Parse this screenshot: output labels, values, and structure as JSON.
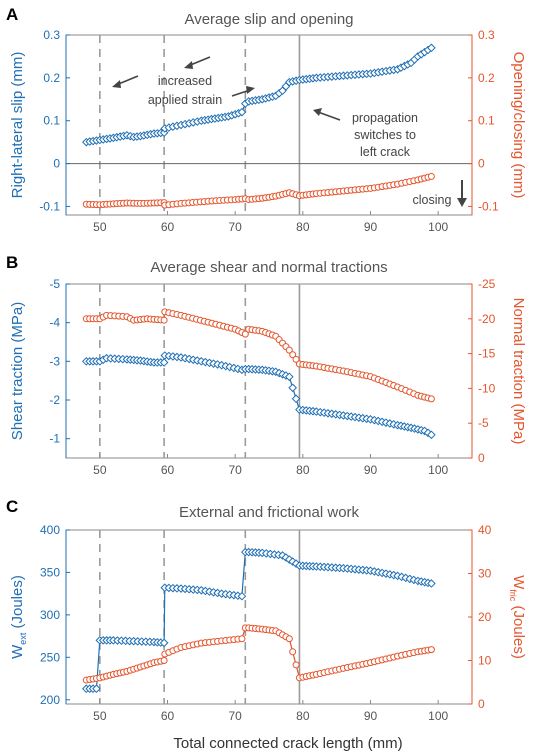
{
  "colors": {
    "blue": "#1f6fb5",
    "orange": "#e4562d",
    "axis": "#555555"
  },
  "xlabel": "Total connected crack length (mm)",
  "chart_data": [
    {
      "label": "A",
      "type": "line",
      "title": "Average slip and opening",
      "xlim": [
        45,
        105
      ],
      "xticks": [
        50,
        60,
        70,
        80,
        90,
        100
      ],
      "vlines_dashed": [
        50,
        59.5,
        71.5
      ],
      "vline_solid": 79.5,
      "left_axis": {
        "label": "Right-lateral slip (mm)",
        "ylim": [
          -0.12,
          0.3
        ],
        "ticks": [
          -0.1,
          0,
          0.1,
          0.2,
          0.3
        ],
        "tick_labels": [
          "-0.1",
          "0",
          "0.1",
          "0.2",
          "0.3"
        ]
      },
      "right_axis": {
        "label": "Opening/closing (mm)",
        "ylim": [
          -0.12,
          0.3
        ],
        "ticks": [
          -0.1,
          0,
          0.1,
          0.2,
          0.3
        ],
        "tick_labels": [
          "-0.1",
          "0",
          "0.1",
          "0.2",
          "0.3"
        ]
      },
      "zero_line": 0,
      "series": [
        {
          "axis": "left",
          "marker": "diamond",
          "points": [
            [
              48,
              0.05
            ],
            [
              50,
              0.055
            ],
            [
              52,
              0.06
            ],
            [
              54,
              0.066
            ],
            [
              55,
              0.062
            ],
            [
              56,
              0.064
            ],
            [
              58,
              0.07
            ],
            [
              59.5,
              0.072
            ],
            [
              59.6,
              0.082
            ],
            [
              62,
              0.09
            ],
            [
              65,
              0.1
            ],
            [
              67,
              0.105
            ],
            [
              69,
              0.11
            ],
            [
              71,
              0.12
            ],
            [
              71.5,
              0.14
            ],
            [
              72,
              0.145
            ],
            [
              74,
              0.15
            ],
            [
              76,
              0.158
            ],
            [
              77,
              0.17
            ],
            [
              78,
              0.19
            ],
            [
              79.5,
              0.195
            ],
            [
              82,
              0.2
            ],
            [
              86,
              0.205
            ],
            [
              90,
              0.21
            ],
            [
              94,
              0.22
            ],
            [
              96,
              0.235
            ],
            [
              97,
              0.25
            ],
            [
              99,
              0.27
            ]
          ]
        },
        {
          "axis": "right",
          "marker": "circle",
          "points": [
            [
              48,
              -0.095
            ],
            [
              50,
              -0.096
            ],
            [
              52,
              -0.094
            ],
            [
              54,
              -0.092
            ],
            [
              56,
              -0.093
            ],
            [
              58,
              -0.092
            ],
            [
              59.5,
              -0.091
            ],
            [
              59.6,
              -0.097
            ],
            [
              62,
              -0.093
            ],
            [
              66,
              -0.088
            ],
            [
              70,
              -0.084
            ],
            [
              71.5,
              -0.082
            ],
            [
              72,
              -0.084
            ],
            [
              74,
              -0.081
            ],
            [
              76,
              -0.076
            ],
            [
              78,
              -0.068
            ],
            [
              79.5,
              -0.075
            ],
            [
              82,
              -0.07
            ],
            [
              86,
              -0.064
            ],
            [
              90,
              -0.058
            ],
            [
              94,
              -0.048
            ],
            [
              97,
              -0.038
            ],
            [
              99,
              -0.03
            ]
          ]
        }
      ],
      "annotations": [
        {
          "text": "increased applied strain",
          "lines": [
            "increased",
            "applied strain"
          ]
        },
        {
          "text": "propagation switches to left crack",
          "lines": [
            "propagation",
            "switches to",
            "left crack"
          ]
        },
        {
          "text": "closing",
          "lines": [
            "closing"
          ]
        }
      ]
    },
    {
      "label": "B",
      "type": "line",
      "title": "Average shear and normal tractions",
      "xlim": [
        45,
        105
      ],
      "xticks": [
        50,
        60,
        70,
        80,
        90,
        100
      ],
      "vlines_dashed": [
        50,
        59.5,
        71.5
      ],
      "vline_solid": 79.5,
      "left_axis": {
        "label": "Shear traction (MPa)",
        "ylim": [
          -0.5,
          -5
        ],
        "ticks": [
          -1,
          -2,
          -3,
          -4,
          -5
        ],
        "tick_labels": [
          "-1",
          "-2",
          "-3",
          "-4",
          "-5"
        ]
      },
      "right_axis": {
        "label": "Normal traction (MPa)",
        "ylim": [
          0,
          -25
        ],
        "ticks": [
          0,
          -5,
          -10,
          -15,
          -20,
          -25
        ],
        "tick_labels": [
          "0",
          "-5",
          "-10",
          "-15",
          "-20",
          "-25"
        ]
      },
      "series": [
        {
          "axis": "left",
          "marker": "diamond",
          "points": [
            [
              48,
              -3.0
            ],
            [
              50,
              -3.0
            ],
            [
              51,
              -3.08
            ],
            [
              54,
              -3.05
            ],
            [
              56,
              -3.02
            ],
            [
              58,
              -2.97
            ],
            [
              59.5,
              -2.97
            ],
            [
              59.6,
              -3.15
            ],
            [
              62,
              -3.1
            ],
            [
              65,
              -3.0
            ],
            [
              68,
              -2.9
            ],
            [
              71,
              -2.78
            ],
            [
              71.5,
              -2.8
            ],
            [
              72,
              -2.8
            ],
            [
              74,
              -2.78
            ],
            [
              76,
              -2.73
            ],
            [
              78,
              -2.6
            ],
            [
              79.5,
              -1.75
            ],
            [
              82,
              -1.7
            ],
            [
              86,
              -1.6
            ],
            [
              90,
              -1.5
            ],
            [
              94,
              -1.35
            ],
            [
              96,
              -1.28
            ],
            [
              98,
              -1.2
            ],
            [
              99,
              -1.1
            ]
          ]
        },
        {
          "axis": "right",
          "marker": "circle",
          "points": [
            [
              48,
              -20
            ],
            [
              50,
              -20
            ],
            [
              51,
              -20.5
            ],
            [
              54,
              -20.3
            ],
            [
              55,
              -19.8
            ],
            [
              57,
              -20
            ],
            [
              59.5,
              -19.8
            ],
            [
              59.6,
              -21
            ],
            [
              62,
              -20.5
            ],
            [
              66,
              -19.5
            ],
            [
              70,
              -18.5
            ],
            [
              71.5,
              -17.8
            ],
            [
              72,
              -18.5
            ],
            [
              74,
              -18.2
            ],
            [
              76,
              -17.5
            ],
            [
              78,
              -15.5
            ],
            [
              79.5,
              -13.5
            ],
            [
              82,
              -13.2
            ],
            [
              86,
              -12.5
            ],
            [
              90,
              -11.7
            ],
            [
              94,
              -10.2
            ],
            [
              97,
              -9
            ],
            [
              99,
              -8.5
            ]
          ]
        }
      ]
    },
    {
      "label": "C",
      "type": "line",
      "title": "External and frictional work",
      "xlim": [
        45,
        105
      ],
      "xticks": [
        50,
        60,
        70,
        80,
        90,
        100
      ],
      "vlines_dashed": [
        50,
        59.5,
        71.5
      ],
      "vline_solid": 79.5,
      "left_axis": {
        "label": "W_ext (Joules)",
        "label_main": "W",
        "label_sub": "ext",
        "label_rest": " (Joules)",
        "ylim": [
          195,
          400
        ],
        "ticks": [
          200,
          250,
          300,
          350,
          400
        ],
        "tick_labels": [
          "200",
          "250",
          "300",
          "350",
          "400"
        ]
      },
      "right_axis": {
        "label": "W_fric (Joules)",
        "label_main": "W",
        "label_sub": "fric",
        "label_rest": " (Joules)",
        "ylim": [
          0,
          40
        ],
        "ticks": [
          0,
          10,
          20,
          30,
          40
        ],
        "tick_labels": [
          "0",
          "10",
          "20",
          "30",
          "40"
        ]
      },
      "series": [
        {
          "axis": "left",
          "marker": "diamond",
          "points": [
            [
              48,
              213
            ],
            [
              49.5,
              213
            ],
            [
              50,
              270
            ],
            [
              52,
              270
            ],
            [
              55,
              269
            ],
            [
              58,
              268
            ],
            [
              59.5,
              267
            ],
            [
              59.6,
              332
            ],
            [
              62,
              331
            ],
            [
              65,
              329
            ],
            [
              68,
              325
            ],
            [
              71,
              322
            ],
            [
              71.5,
              374
            ],
            [
              72,
              374
            ],
            [
              74,
              373
            ],
            [
              77,
              370
            ],
            [
              79.5,
              358
            ],
            [
              82,
              357
            ],
            [
              86,
              355
            ],
            [
              90,
              352
            ],
            [
              94,
              346
            ],
            [
              97,
              340
            ],
            [
              99,
              337
            ]
          ]
        },
        {
          "axis": "right",
          "marker": "circle",
          "points": [
            [
              48,
              5.5
            ],
            [
              50,
              6
            ],
            [
              52,
              6.8
            ],
            [
              54,
              7.5
            ],
            [
              56,
              8.5
            ],
            [
              58,
              9.5
            ],
            [
              59.5,
              10
            ],
            [
              59.6,
              11.5
            ],
            [
              62,
              13
            ],
            [
              65,
              14
            ],
            [
              68,
              14.5
            ],
            [
              71,
              15
            ],
            [
              71.5,
              17.5
            ],
            [
              72,
              17.5
            ],
            [
              74,
              17.2
            ],
            [
              76,
              16.8
            ],
            [
              78,
              15
            ],
            [
              79.5,
              6
            ],
            [
              82,
              6.8
            ],
            [
              86,
              8.2
            ],
            [
              90,
              9.5
            ],
            [
              94,
              11
            ],
            [
              97,
              12
            ],
            [
              99,
              12.5
            ]
          ]
        }
      ]
    }
  ]
}
